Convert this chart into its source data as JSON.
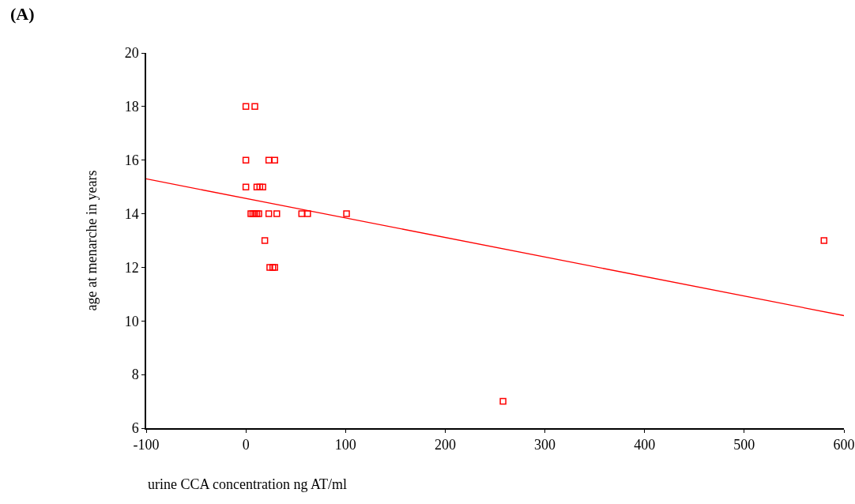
{
  "chart_data": {
    "type": "scatter",
    "title": "(A)",
    "xlabel": "urine CCA concentration ng AT/ml",
    "ylabel": "age at menarche in years",
    "xlim": [
      -100,
      600
    ],
    "xticks": [
      -100,
      0,
      100,
      200,
      300,
      400,
      500,
      600
    ],
    "ylim": [
      6,
      20
    ],
    "yticks": [
      6,
      8,
      10,
      12,
      14,
      16,
      18,
      20
    ],
    "grid": false,
    "marker": "square",
    "series": [
      {
        "color": "#ff0000",
        "x": [
          0,
          9,
          0,
          23,
          29,
          0,
          11,
          14,
          17,
          5,
          7,
          9,
          11,
          13,
          23,
          31,
          56,
          62,
          101,
          19,
          24,
          27,
          29,
          258,
          580
        ],
        "values": [
          18,
          18,
          16,
          16,
          16,
          15,
          15,
          15,
          15,
          14,
          14,
          14,
          14,
          14,
          14,
          14,
          14,
          14,
          14,
          13,
          12,
          12,
          12,
          7,
          13
        ]
      },
      {
        "type": "line",
        "color": "#ff0000",
        "x": [
          -100,
          600
        ],
        "values": [
          15.3,
          10.2
        ],
        "marker": "none",
        "line_style": "solid"
      }
    ]
  }
}
